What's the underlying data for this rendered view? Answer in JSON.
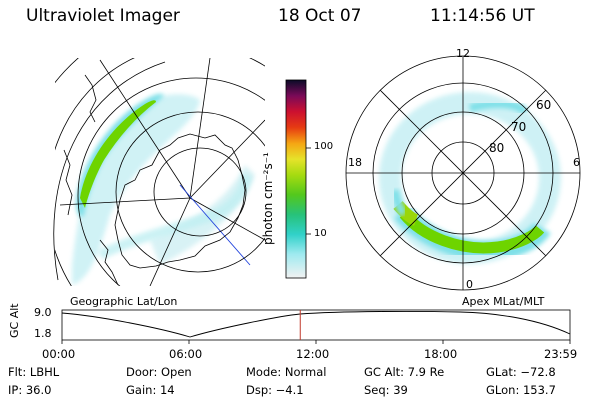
{
  "header": {
    "instrument": "Ultraviolet Imager",
    "date": "18 Oct 07",
    "time": "11:14:56 UT"
  },
  "colorbar": {
    "label": "photon cm⁻²s⁻¹",
    "ticks": [
      "100",
      "10"
    ]
  },
  "left_panel": {
    "label": "Geographic Lat/Lon"
  },
  "right_panel": {
    "label": "Apex  MLat/MLT",
    "mlt_labels": [
      "12",
      "18",
      "6",
      "0"
    ],
    "mlat_labels": [
      "60",
      "70",
      "80"
    ]
  },
  "altitude_plot": {
    "ylabel": "GC Alt",
    "yticks": [
      "9.0",
      "1.8"
    ],
    "xticks": [
      "00:00",
      "06:00",
      "12:00",
      "18:00",
      "23:59"
    ],
    "current_time_fraction": 0.469
  },
  "info": {
    "filter": "Flt: LBHL",
    "door": "Door: Open",
    "mode": "Mode: Normal",
    "gc_alt": "GC Alt: 7.9 Re",
    "glat": "GLat: −72.8",
    "ip": "IP: 36.0",
    "gain": "Gain: 14",
    "dsp": "Dsp:   −4.1",
    "seq": "Seq: 39",
    "glon": "GLon: 153.7"
  },
  "colors": {
    "aurora_green": "#6ed400",
    "aurora_cyan": "#7fe0e8",
    "grid": "#000000",
    "marker": "#c0392b"
  }
}
